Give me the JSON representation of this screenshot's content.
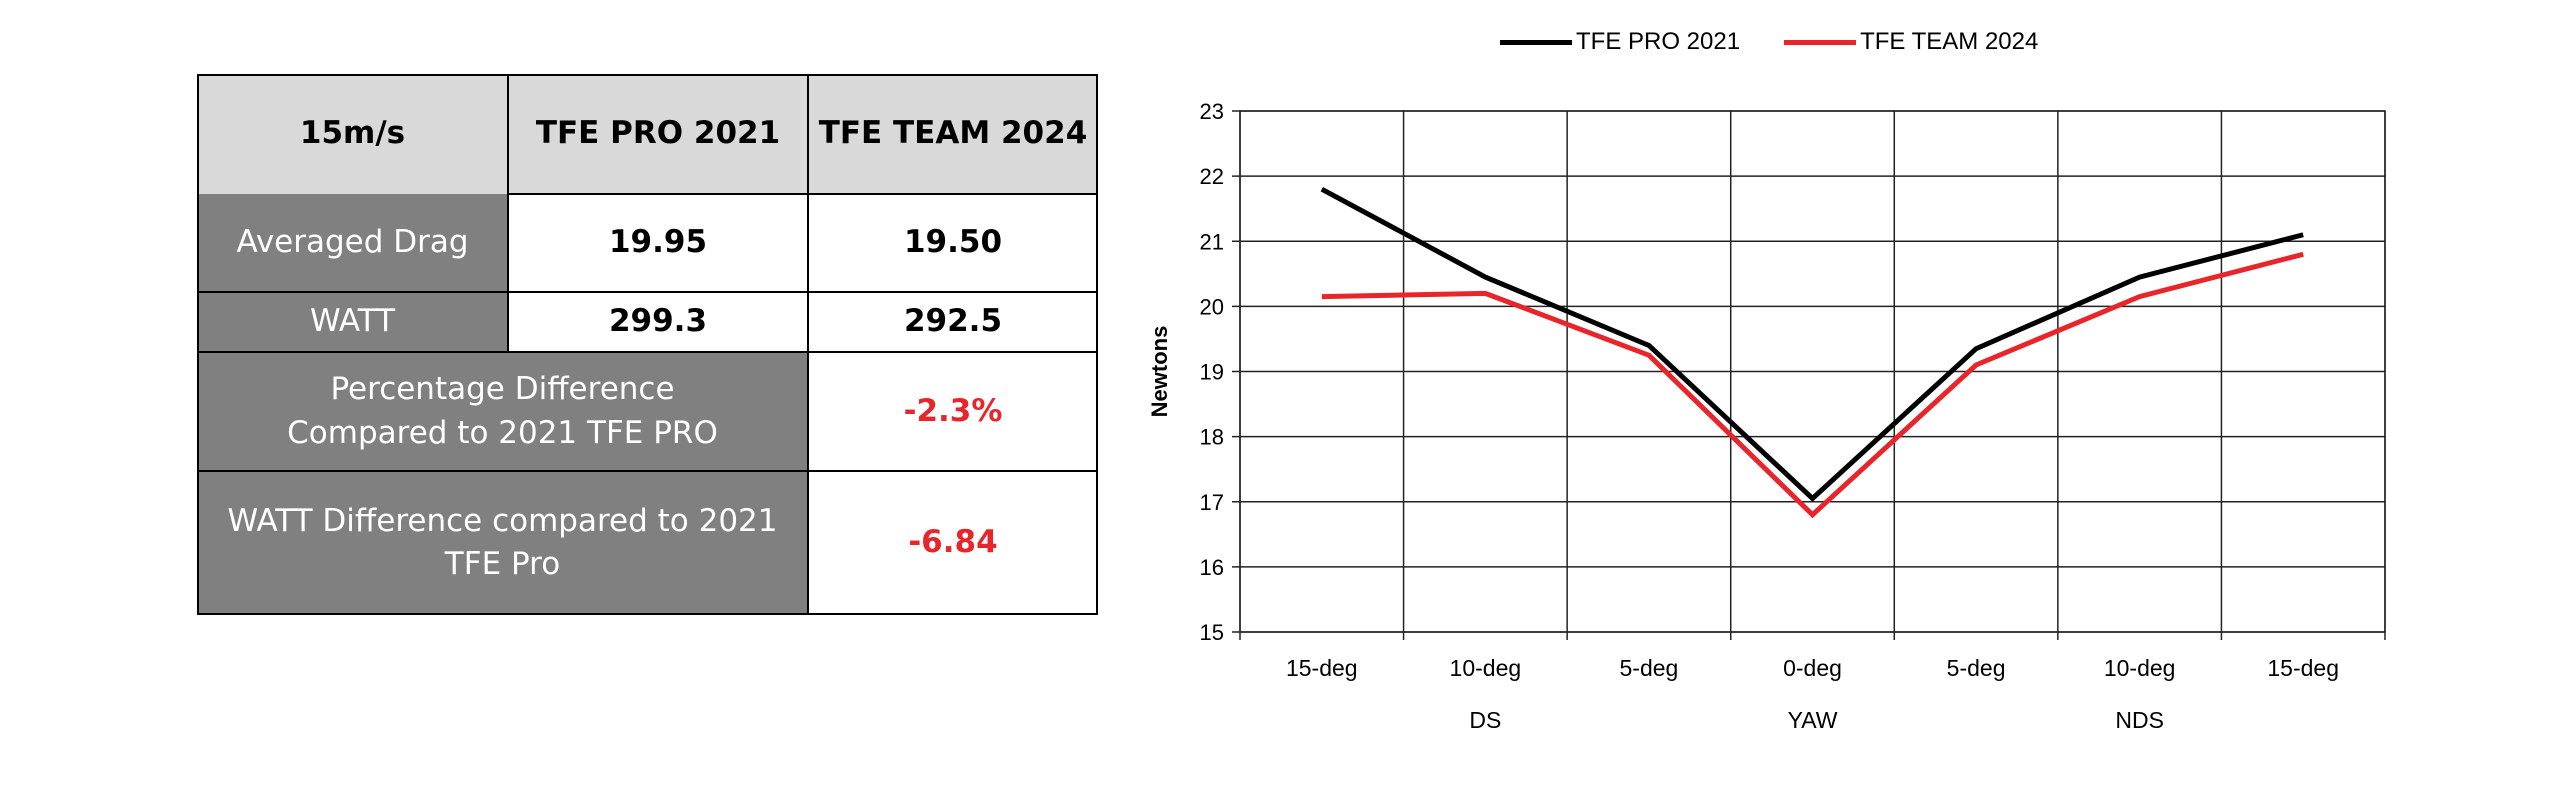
{
  "table": {
    "header": {
      "speed": "15m/s",
      "col1": "TFE PRO 2021",
      "col2": "TFE TEAM 2024"
    },
    "rows": [
      {
        "label": "Averaged Drag",
        "v1": "19.95",
        "v2": "19.50"
      },
      {
        "label": "WATT",
        "v1": "299.3",
        "v2": "292.5"
      }
    ],
    "pct_diff": {
      "label": "Percentage Difference Compared to 2021 TFE PRO",
      "value": "-2.3%"
    },
    "watt_diff": {
      "label": "WATT Difference compared to 2021 TFE Pro",
      "value": "-6.84"
    },
    "colors": {
      "header_bg": "#d9d9d9",
      "label_bg": "#808080",
      "negative": "#e8252a"
    }
  },
  "chart_data": {
    "type": "line",
    "categories": [
      "15-deg",
      "10-deg",
      "5-deg",
      "0-deg",
      "5-deg",
      "10-deg",
      "15-deg"
    ],
    "category_groups": [
      "DS",
      "YAW",
      "NDS"
    ],
    "ylabel": "Newtons",
    "ylim": [
      15,
      23
    ],
    "yticks": [
      15,
      16,
      17,
      18,
      19,
      20,
      21,
      22,
      23
    ],
    "grid": true,
    "legend": "top-center",
    "series": [
      {
        "name": "TFE PRO 2021",
        "color": "#000000",
        "values": [
          21.8,
          20.45,
          19.4,
          17.05,
          19.35,
          20.45,
          21.1
        ]
      },
      {
        "name": "TFE TEAM 2024",
        "color": "#e8252a",
        "values": [
          20.15,
          20.2,
          19.25,
          16.8,
          19.1,
          20.15,
          20.8
        ]
      }
    ]
  }
}
